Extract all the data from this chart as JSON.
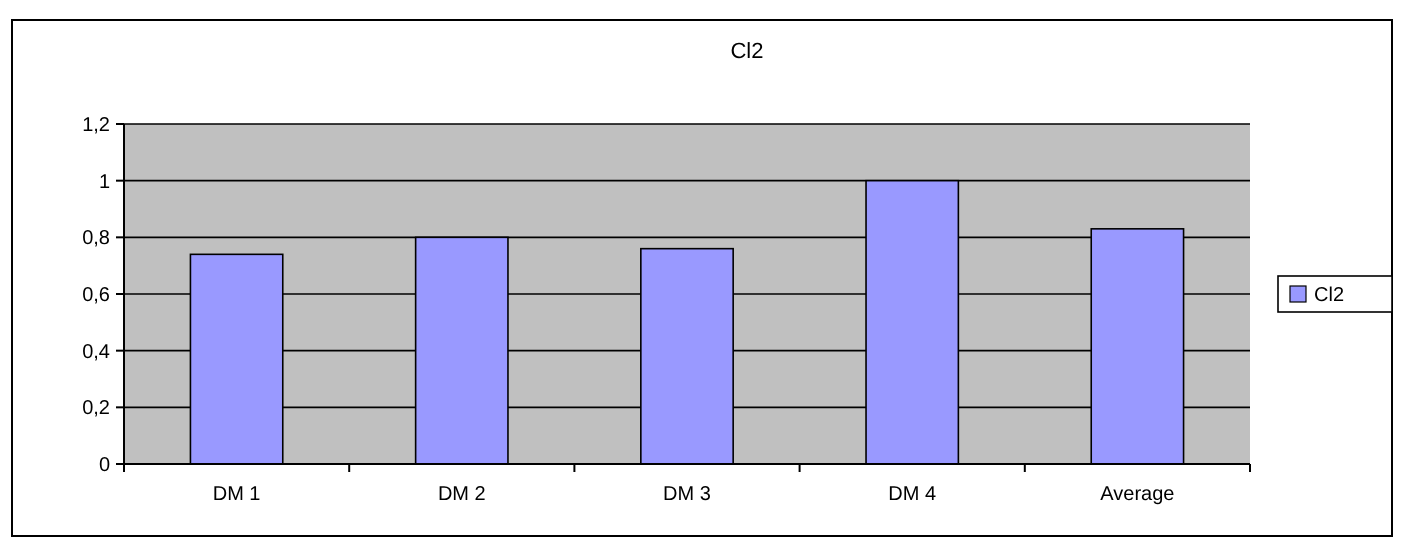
{
  "chart_data": {
    "type": "bar",
    "title": "Cl2",
    "categories": [
      "DM 1",
      "DM 2",
      "DM 3",
      "DM 4",
      "Average"
    ],
    "series": [
      {
        "name": "Cl2",
        "color": "#9999ff",
        "values": [
          0.74,
          0.8,
          0.76,
          1.0,
          0.83
        ]
      }
    ],
    "ylim": [
      0,
      1.2
    ],
    "yticks": [
      {
        "value": 0,
        "label": "0"
      },
      {
        "value": 0.2,
        "label": "0,2"
      },
      {
        "value": 0.4,
        "label": "0,4"
      },
      {
        "value": 0.6,
        "label": "0,6"
      },
      {
        "value": 0.8,
        "label": "0,8"
      },
      {
        "value": 1,
        "label": "1"
      },
      {
        "value": 1.2,
        "label": "1,2"
      }
    ],
    "grid": "y",
    "legend": "right"
  }
}
